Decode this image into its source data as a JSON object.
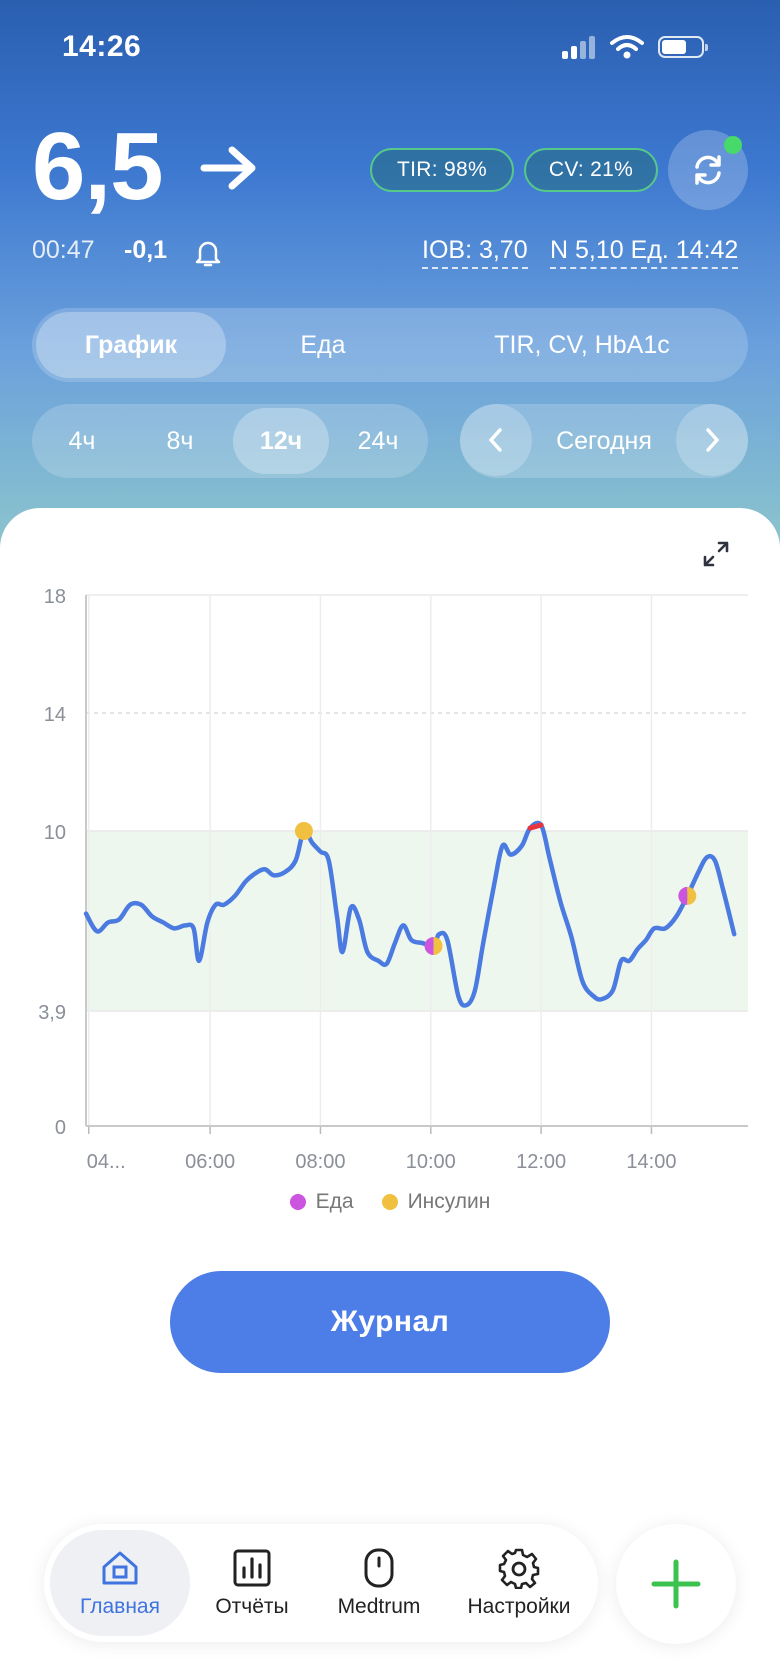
{
  "status_bar": {
    "time": "14:26"
  },
  "glucose": {
    "value": "6,5",
    "trend": "arrow-right-icon",
    "time_ago": "00:47",
    "delta": "-0,1"
  },
  "badges": {
    "tir": "TIR: 98%",
    "cv": "CV: 21%"
  },
  "insulin": {
    "iob": "IOB: 3,70",
    "last_dose": "N 5,10 Ед. 14:42"
  },
  "tabs": [
    {
      "label": "График",
      "active": true
    },
    {
      "label": "Еда",
      "active": false
    },
    {
      "label": "TIR, CV, HbA1c",
      "active": false
    }
  ],
  "ranges": [
    {
      "label": "4ч",
      "active": false
    },
    {
      "label": "8ч",
      "active": false
    },
    {
      "label": "12ч",
      "active": true
    },
    {
      "label": "24ч",
      "active": false
    }
  ],
  "date_nav": {
    "label": "Сегодня"
  },
  "chart_data": {
    "type": "line",
    "y_ticks": [
      "18",
      "14",
      "10",
      "3,9",
      "0"
    ],
    "y_tick_values": [
      18,
      14,
      10,
      3.9,
      0
    ],
    "ylim": [
      0,
      18
    ],
    "target_range": [
      3.9,
      10
    ],
    "x_tick_labels": [
      "04...",
      "06:00",
      "08:00",
      "10:00",
      "12:00",
      "14:00"
    ],
    "x_tick_hours": [
      3.8,
      6,
      8,
      10,
      12,
      14
    ],
    "xlim": [
      3.75,
      15.75
    ],
    "colors": {
      "line": "#4b7be0",
      "high": "#e8363f",
      "food": "#cc55e0",
      "insulin": "#f2c040",
      "target_band": "#eef7ee"
    },
    "series": [
      {
        "points": [
          [
            3.75,
            7.2
          ],
          [
            3.95,
            6.6
          ],
          [
            4.15,
            6.9
          ],
          [
            4.35,
            7.0
          ],
          [
            4.55,
            7.5
          ],
          [
            4.75,
            7.5
          ],
          [
            4.95,
            7.1
          ],
          [
            5.15,
            6.9
          ],
          [
            5.35,
            6.7
          ],
          [
            5.55,
            6.8
          ],
          [
            5.7,
            6.7
          ],
          [
            5.8,
            5.6
          ],
          [
            5.95,
            6.9
          ],
          [
            6.1,
            7.5
          ],
          [
            6.25,
            7.5
          ],
          [
            6.45,
            7.8
          ],
          [
            6.65,
            8.3
          ],
          [
            6.85,
            8.6
          ],
          [
            7.0,
            8.7
          ],
          [
            7.15,
            8.5
          ],
          [
            7.35,
            8.6
          ],
          [
            7.55,
            9.0
          ],
          [
            7.7,
            10.0
          ],
          [
            7.85,
            9.6
          ],
          [
            8.0,
            9.3
          ],
          [
            8.15,
            9.0
          ],
          [
            8.3,
            7.1
          ],
          [
            8.4,
            5.9
          ],
          [
            8.55,
            7.4
          ],
          [
            8.7,
            7.0
          ],
          [
            8.85,
            5.9
          ],
          [
            9.05,
            5.6
          ],
          [
            9.2,
            5.5
          ],
          [
            9.35,
            6.2
          ],
          [
            9.5,
            6.8
          ],
          [
            9.65,
            6.3
          ],
          [
            9.85,
            6.2
          ],
          [
            10.05,
            6.1
          ],
          [
            10.15,
            6.5
          ],
          [
            10.3,
            6.3
          ],
          [
            10.5,
            4.4
          ],
          [
            10.65,
            4.1
          ],
          [
            10.8,
            4.6
          ],
          [
            10.95,
            6.2
          ],
          [
            11.15,
            8.2
          ],
          [
            11.3,
            9.5
          ],
          [
            11.45,
            9.2
          ],
          [
            11.65,
            9.5
          ],
          [
            11.8,
            10.1
          ],
          [
            12.0,
            10.2
          ],
          [
            12.15,
            9.1
          ],
          [
            12.35,
            7.6
          ],
          [
            12.55,
            6.4
          ],
          [
            12.75,
            4.9
          ],
          [
            12.95,
            4.4
          ],
          [
            13.1,
            4.3
          ],
          [
            13.3,
            4.6
          ],
          [
            13.45,
            5.6
          ],
          [
            13.6,
            5.6
          ],
          [
            13.75,
            6.0
          ],
          [
            13.9,
            6.3
          ],
          [
            14.05,
            6.7
          ],
          [
            14.25,
            6.7
          ],
          [
            14.45,
            7.1
          ],
          [
            14.65,
            7.8
          ],
          [
            14.85,
            8.6
          ],
          [
            15.0,
            9.1
          ],
          [
            15.15,
            9.0
          ],
          [
            15.3,
            8.0
          ],
          [
            15.5,
            6.5
          ]
        ]
      }
    ],
    "high_segment": [
      [
        11.8,
        10.1
      ],
      [
        12.0,
        10.2
      ]
    ],
    "markers": [
      {
        "x": 7.7,
        "y": 10.0,
        "type": "insulin"
      },
      {
        "x": 10.05,
        "y": 6.1,
        "type": "food+insulin"
      },
      {
        "x": 14.65,
        "y": 7.8,
        "type": "food+insulin"
      }
    ],
    "legend": [
      "Еда",
      "Инсулин"
    ]
  },
  "journal_button": "Журнал",
  "nav": [
    {
      "label": "Главная",
      "icon": "home-icon",
      "active": true
    },
    {
      "label": "Отчёты",
      "icon": "chart-icon",
      "active": false
    },
    {
      "label": "Medtrum",
      "icon": "device-icon",
      "active": false
    },
    {
      "label": "Настройки",
      "icon": "gear-icon",
      "active": false
    }
  ],
  "fab_icon": "plus-icon"
}
